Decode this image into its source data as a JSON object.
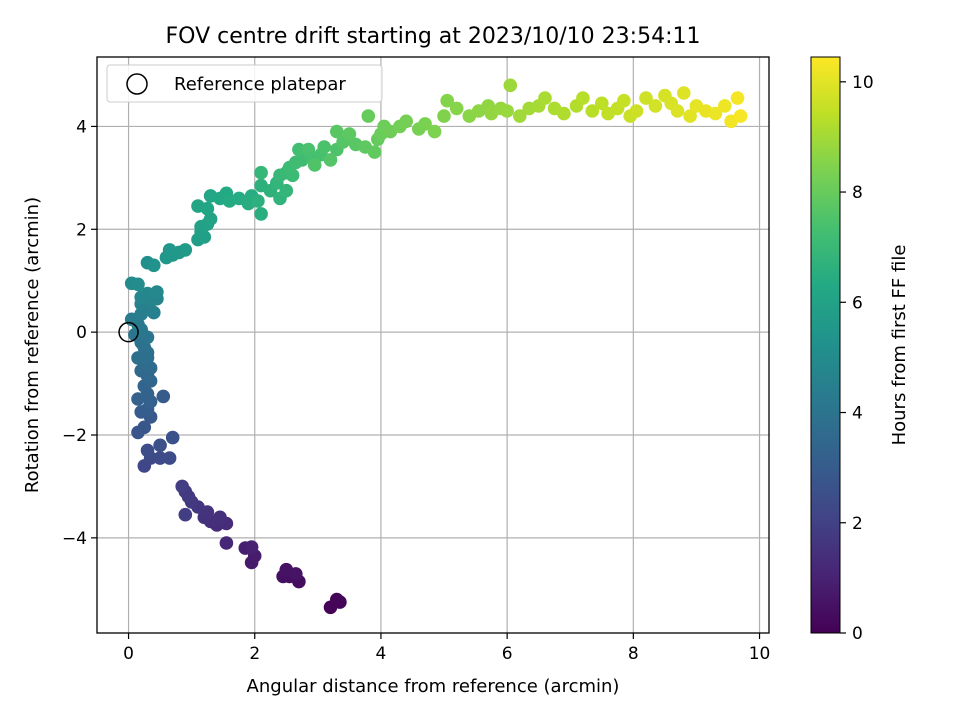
{
  "chart_data": {
    "type": "scatter",
    "title": "FOV centre drift starting at 2023/10/10 23:54:11",
    "xlabel": "Angular distance from reference (arcmin)",
    "ylabel": "Rotation from reference (arcmin)",
    "xlim": [
      -0.5,
      10.15
    ],
    "ylim": [
      -5.85,
      5.35
    ],
    "xticks": [
      "0",
      "2",
      "4",
      "6",
      "8",
      "10"
    ],
    "yticks": [
      "−4",
      "−2",
      "0",
      "2",
      "4"
    ],
    "xtick_values": [
      0,
      2,
      4,
      6,
      8,
      10
    ],
    "ytick_values": [
      -4,
      -2,
      0,
      2,
      4
    ],
    "grid": true,
    "legend": {
      "label": "Reference platepar",
      "placement": "upper-left",
      "marker": "open-circle"
    },
    "reference_point": [
      0,
      0
    ],
    "colorbar": {
      "label": "Hours from first FF file",
      "range": [
        0,
        10.45
      ],
      "ticks": [
        "0",
        "2",
        "4",
        "6",
        "8",
        "10"
      ],
      "tick_values": [
        0,
        2,
        4,
        6,
        8,
        10
      ],
      "colormap": "viridis"
    },
    "series": [
      {
        "columns": [
          "x",
          "y",
          "hours"
        ],
        "points": [
          [
            3.2,
            -5.35,
            0.05
          ],
          [
            3.35,
            -5.25,
            0.1
          ],
          [
            3.3,
            -5.2,
            0.15
          ],
          [
            2.7,
            -4.85,
            0.35
          ],
          [
            2.55,
            -4.75,
            0.4
          ],
          [
            2.45,
            -4.75,
            0.45
          ],
          [
            2.5,
            -4.62,
            0.5
          ],
          [
            2.65,
            -4.7,
            0.55
          ],
          [
            1.95,
            -4.48,
            0.75
          ],
          [
            2.0,
            -4.35,
            0.8
          ],
          [
            1.85,
            -4.2,
            0.9
          ],
          [
            1.95,
            -4.18,
            0.95
          ],
          [
            1.55,
            -4.1,
            1.15
          ],
          [
            1.55,
            -3.72,
            1.3
          ],
          [
            1.4,
            -3.75,
            1.35
          ],
          [
            1.3,
            -3.68,
            1.4
          ],
          [
            1.45,
            -3.6,
            1.45
          ],
          [
            1.2,
            -3.6,
            1.5
          ],
          [
            1.25,
            -3.5,
            1.55
          ],
          [
            1.1,
            -3.4,
            1.6
          ],
          [
            1.0,
            -3.3,
            1.7
          ],
          [
            0.95,
            -3.2,
            1.75
          ],
          [
            0.9,
            -3.1,
            1.8
          ],
          [
            0.85,
            -3.0,
            1.85
          ],
          [
            0.9,
            -3.55,
            1.9
          ],
          [
            0.25,
            -2.6,
            2.2
          ],
          [
            0.35,
            -2.45,
            2.3
          ],
          [
            0.5,
            -2.45,
            2.35
          ],
          [
            0.65,
            -2.45,
            2.4
          ],
          [
            0.3,
            -2.3,
            2.45
          ],
          [
            0.5,
            -2.2,
            2.55
          ],
          [
            0.7,
            -2.05,
            2.6
          ],
          [
            0.15,
            -1.95,
            2.75
          ],
          [
            0.25,
            -1.85,
            2.8
          ],
          [
            0.35,
            -1.65,
            2.9
          ],
          [
            0.55,
            -1.25,
            3.0
          ],
          [
            0.2,
            -1.55,
            3.05
          ],
          [
            0.3,
            -1.5,
            3.1
          ],
          [
            0.35,
            -1.35,
            3.2
          ],
          [
            0.15,
            -1.3,
            3.25
          ],
          [
            0.3,
            -1.2,
            3.3
          ],
          [
            0.25,
            -1.05,
            3.35
          ],
          [
            0.35,
            -0.95,
            3.45
          ],
          [
            0.3,
            -0.85,
            3.5
          ],
          [
            0.2,
            -0.75,
            3.55
          ],
          [
            0.35,
            -0.7,
            3.6
          ],
          [
            0.25,
            -0.6,
            3.7
          ],
          [
            0.3,
            -0.5,
            3.75
          ],
          [
            0.15,
            -0.5,
            3.8
          ],
          [
            0.3,
            -0.4,
            3.85
          ],
          [
            0.25,
            -0.3,
            3.9
          ],
          [
            0.2,
            -0.2,
            3.95
          ],
          [
            0.3,
            -0.1,
            4.05
          ],
          [
            0.1,
            -0.05,
            4.1
          ],
          [
            0.2,
            0.05,
            4.2
          ],
          [
            0.15,
            0.15,
            4.25
          ],
          [
            0.05,
            0.25,
            4.3
          ],
          [
            0.2,
            0.35,
            4.4
          ],
          [
            0.3,
            0.45,
            4.45
          ],
          [
            0.4,
            0.38,
            4.5
          ],
          [
            0.2,
            0.55,
            4.55
          ],
          [
            0.35,
            0.6,
            4.6
          ],
          [
            0.45,
            0.65,
            4.7
          ],
          [
            0.2,
            0.68,
            4.75
          ],
          [
            0.3,
            0.75,
            4.8
          ],
          [
            0.45,
            0.78,
            4.85
          ],
          [
            0.05,
            0.95,
            4.95
          ],
          [
            0.15,
            0.93,
            5.0
          ],
          [
            0.3,
            1.35,
            5.2
          ],
          [
            0.4,
            1.3,
            5.25
          ],
          [
            0.6,
            1.45,
            5.45
          ],
          [
            0.7,
            1.5,
            5.5
          ],
          [
            0.65,
            1.6,
            5.55
          ],
          [
            0.8,
            1.55,
            5.6
          ],
          [
            0.9,
            1.6,
            5.65
          ],
          [
            1.1,
            1.8,
            5.8
          ],
          [
            1.15,
            1.95,
            5.85
          ],
          [
            1.2,
            1.85,
            5.9
          ],
          [
            1.15,
            2.05,
            5.95
          ],
          [
            1.25,
            2.1,
            6.0
          ],
          [
            1.3,
            2.2,
            6.05
          ],
          [
            1.1,
            2.45,
            6.1
          ],
          [
            1.25,
            2.4,
            6.15
          ],
          [
            1.3,
            2.65,
            6.2
          ],
          [
            1.45,
            2.6,
            6.25
          ],
          [
            1.55,
            2.7,
            6.3
          ],
          [
            1.6,
            2.55,
            6.35
          ],
          [
            1.75,
            2.6,
            6.4
          ],
          [
            1.95,
            2.65,
            6.45
          ],
          [
            1.9,
            2.5,
            6.5
          ],
          [
            2.1,
            2.3,
            6.55
          ],
          [
            2.05,
            2.55,
            6.6
          ],
          [
            2.1,
            2.85,
            6.65
          ],
          [
            2.25,
            2.75,
            6.7
          ],
          [
            2.4,
            2.6,
            6.75
          ],
          [
            2.35,
            2.9,
            6.8
          ],
          [
            2.5,
            2.75,
            6.85
          ],
          [
            2.1,
            3.1,
            6.9
          ],
          [
            2.4,
            3.05,
            6.95
          ],
          [
            2.5,
            3.1,
            7.0
          ],
          [
            2.6,
            3.05,
            7.05
          ],
          [
            2.55,
            3.2,
            7.1
          ],
          [
            2.65,
            3.3,
            7.15
          ],
          [
            2.75,
            3.35,
            7.2
          ],
          [
            2.7,
            3.55,
            7.25
          ],
          [
            2.9,
            3.4,
            7.3
          ],
          [
            3.05,
            3.45,
            7.35
          ],
          [
            2.85,
            3.55,
            7.4
          ],
          [
            3.1,
            3.6,
            7.45
          ],
          [
            3.3,
            3.55,
            7.5
          ],
          [
            2.95,
            3.25,
            7.55
          ],
          [
            3.2,
            3.35,
            7.6
          ],
          [
            3.4,
            3.7,
            7.65
          ],
          [
            3.6,
            3.65,
            7.7
          ],
          [
            3.3,
            3.9,
            7.75
          ],
          [
            3.5,
            3.85,
            7.8
          ],
          [
            3.75,
            3.6,
            7.85
          ],
          [
            3.9,
            3.5,
            7.9
          ],
          [
            3.95,
            3.75,
            7.95
          ],
          [
            3.8,
            4.2,
            8.0
          ],
          [
            4.0,
            3.85,
            8.05
          ],
          [
            4.05,
            4.0,
            8.1
          ],
          [
            4.15,
            3.9,
            8.15
          ],
          [
            4.3,
            4.0,
            8.2
          ],
          [
            4.4,
            4.1,
            8.25
          ],
          [
            4.6,
            3.95,
            8.3
          ],
          [
            4.7,
            4.05,
            8.35
          ],
          [
            4.85,
            3.9,
            8.4
          ],
          [
            5.0,
            4.2,
            8.45
          ],
          [
            5.05,
            4.5,
            8.5
          ],
          [
            5.2,
            4.35,
            8.55
          ],
          [
            5.4,
            4.2,
            8.6
          ],
          [
            5.55,
            4.3,
            8.65
          ],
          [
            5.7,
            4.4,
            8.7
          ],
          [
            5.75,
            4.25,
            8.75
          ],
          [
            5.9,
            4.35,
            8.8
          ],
          [
            6.0,
            4.3,
            8.85
          ],
          [
            6.05,
            4.8,
            8.9
          ],
          [
            6.2,
            4.2,
            8.95
          ],
          [
            6.35,
            4.35,
            9.0
          ],
          [
            6.5,
            4.4,
            9.05
          ],
          [
            6.6,
            4.55,
            9.1
          ],
          [
            6.75,
            4.35,
            9.15
          ],
          [
            6.9,
            4.25,
            9.2
          ],
          [
            7.1,
            4.4,
            9.25
          ],
          [
            7.2,
            4.55,
            9.3
          ],
          [
            7.35,
            4.3,
            9.35
          ],
          [
            7.5,
            4.45,
            9.4
          ],
          [
            7.6,
            4.25,
            9.45
          ],
          [
            7.75,
            4.35,
            9.5
          ],
          [
            7.85,
            4.5,
            9.55
          ],
          [
            7.95,
            4.2,
            9.6
          ],
          [
            8.05,
            4.3,
            9.65
          ],
          [
            8.2,
            4.55,
            9.7
          ],
          [
            8.35,
            4.4,
            9.75
          ],
          [
            8.5,
            4.6,
            9.8
          ],
          [
            8.6,
            4.45,
            9.85
          ],
          [
            8.7,
            4.3,
            9.9
          ],
          [
            8.8,
            4.65,
            9.95
          ],
          [
            8.9,
            4.2,
            10.0
          ],
          [
            9.0,
            4.4,
            10.05
          ],
          [
            9.15,
            4.3,
            10.1
          ],
          [
            9.3,
            4.25,
            10.15
          ],
          [
            9.45,
            4.4,
            10.2
          ],
          [
            9.55,
            4.1,
            10.25
          ],
          [
            9.65,
            4.55,
            10.3
          ],
          [
            9.7,
            4.2,
            10.35
          ]
        ]
      }
    ]
  }
}
